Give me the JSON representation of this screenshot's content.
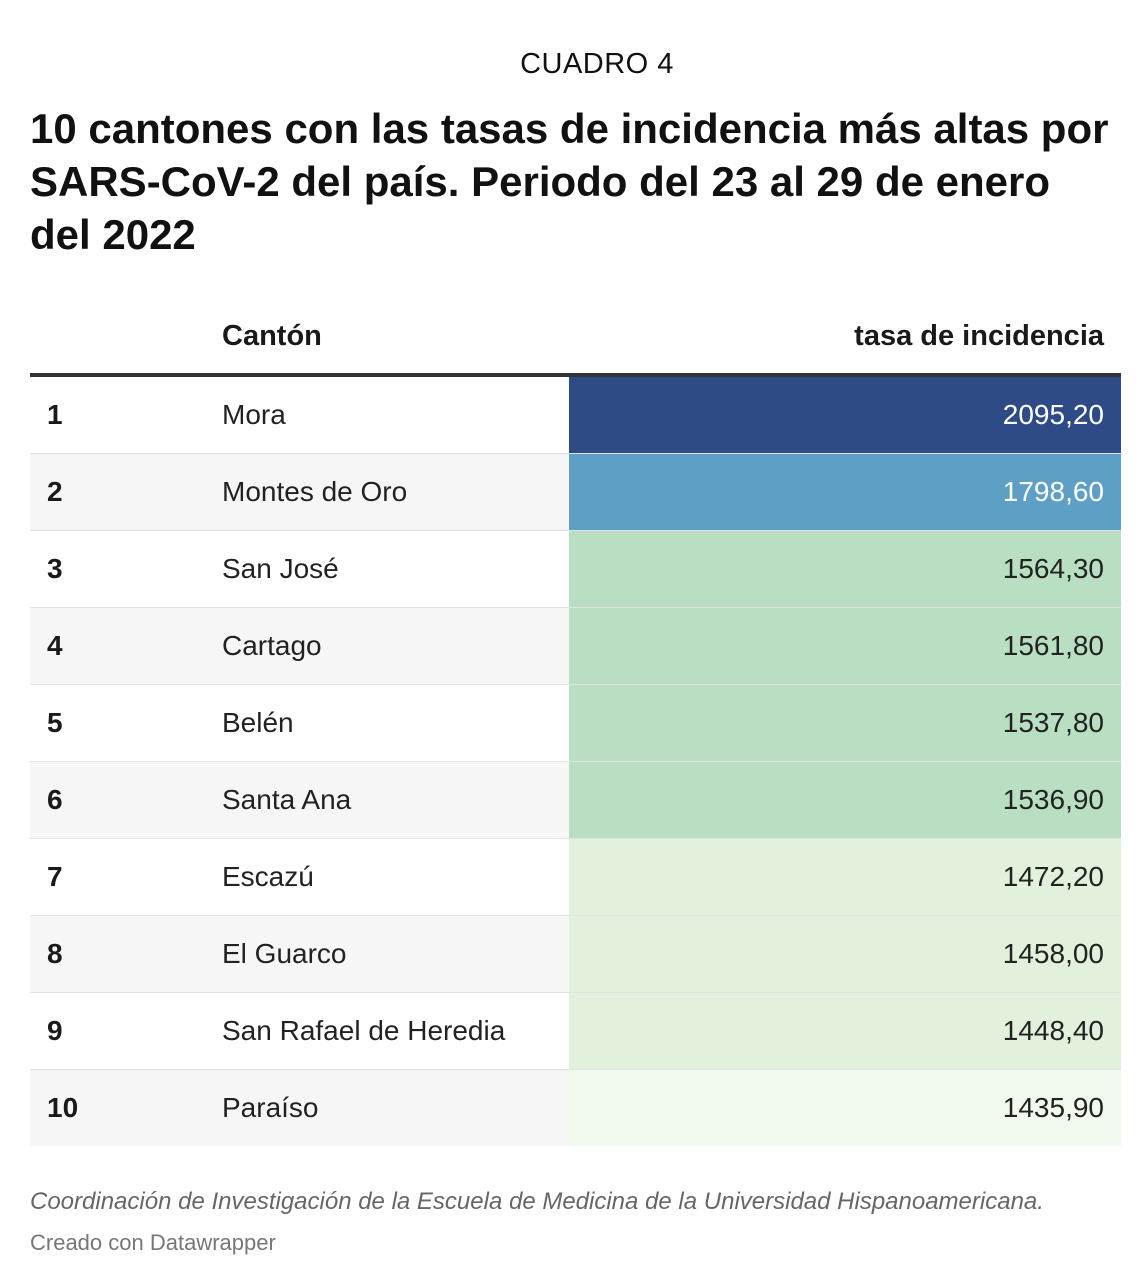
{
  "kicker": "CUADRO 4",
  "title": "10 cantones con las tasas de incidencia más altas por SARS-CoV-2 del país. Periodo del 23 al 29 de enero del 2022",
  "colors": {
    "scale": [
      "#f1f8ec",
      "#e1f1dc",
      "#b8dfc2",
      "#5e9fc5",
      "#2e4b88"
    ],
    "text_dark": "#222222",
    "text_light": "#ffffff"
  },
  "chart_data": {
    "type": "table",
    "columns": [
      "",
      "Cantón",
      "tasa de incidencia"
    ],
    "rows": [
      {
        "rank": "1",
        "canton": "Mora",
        "tasa": "2095,20",
        "value": 2095.2
      },
      {
        "rank": "2",
        "canton": "Montes de Oro",
        "tasa": "1798,60",
        "value": 1798.6
      },
      {
        "rank": "3",
        "canton": "San José",
        "tasa": "1564,30",
        "value": 1564.3
      },
      {
        "rank": "4",
        "canton": "Cartago",
        "tasa": "1561,80",
        "value": 1561.8
      },
      {
        "rank": "5",
        "canton": "Belén",
        "tasa": "1537,80",
        "value": 1537.8
      },
      {
        "rank": "6",
        "canton": "Santa Ana",
        "tasa": "1536,90",
        "value": 1536.9
      },
      {
        "rank": "7",
        "canton": "Escazú",
        "tasa": "1472,20",
        "value": 1472.2
      },
      {
        "rank": "8",
        "canton": "El Guarco",
        "tasa": "1458,00",
        "value": 1458.0
      },
      {
        "rank": "9",
        "canton": "San Rafael de Heredia",
        "tasa": "1448,40",
        "value": 1448.4
      },
      {
        "rank": "10",
        "canton": "Paraíso",
        "tasa": "1435,90",
        "value": 1435.9
      }
    ]
  },
  "footer": {
    "source": "Coordinación de Investigación de la Escuela de Medicina de la Universidad Hispanoamericana.",
    "credit": "Creado con Datawrapper"
  }
}
